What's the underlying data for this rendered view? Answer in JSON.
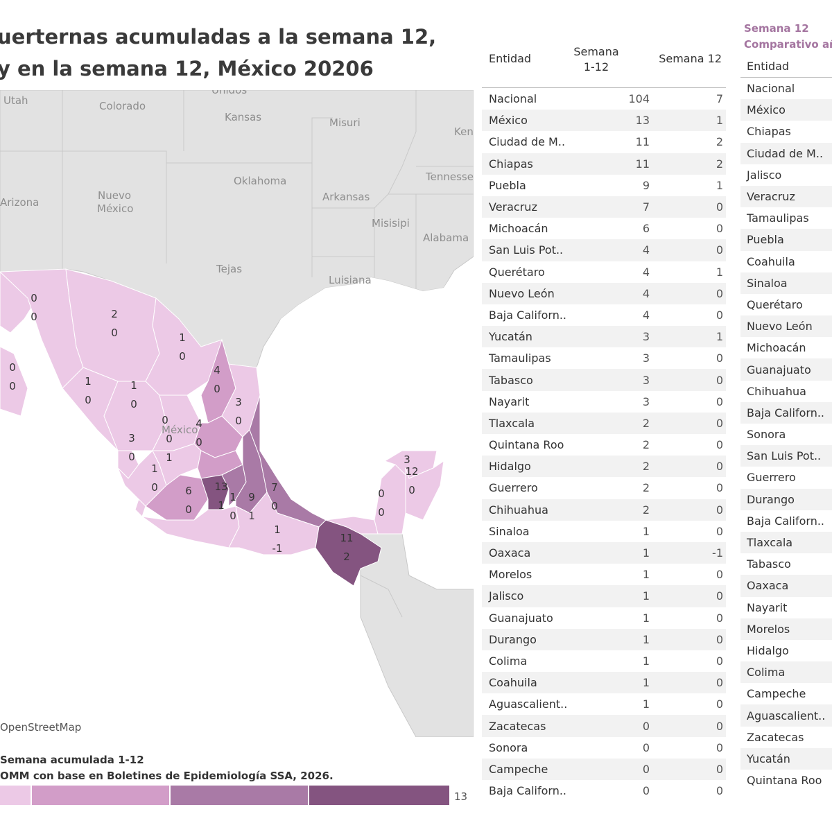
{
  "title": {
    "line1": "uerternas acumuladas a la semana 12,",
    "line2": "y en la semana 12, México 20206"
  },
  "map": {
    "attribution": "OpenStreetMap",
    "labels": [
      "Unidos",
      "Utah",
      "Colorado",
      "Kansas",
      "Misuri",
      "Ken",
      "Oklahoma",
      "Tennessee",
      "Arizona",
      "Nuevo",
      "México",
      "Arkansas",
      "Misisipi",
      "Alabama",
      "Tejas",
      "Luisiana",
      "México"
    ],
    "state_values": [
      {
        "a": "0",
        "b": "0"
      },
      {
        "a": "2",
        "b": "0"
      },
      {
        "a": "1",
        "b": "0"
      },
      {
        "a": "0",
        "b": "0"
      },
      {
        "a": "1",
        "b": "0"
      },
      {
        "a": "1",
        "b": "0"
      },
      {
        "a": "4",
        "b": "0"
      },
      {
        "a": "3",
        "b": "0"
      },
      {
        "a": "0",
        "b": ""
      },
      {
        "a": "4",
        "b": "0"
      },
      {
        "a": "3",
        "b": "0"
      },
      {
        "a": "0",
        "b": "1"
      },
      {
        "a": "1",
        "b": "0"
      },
      {
        "a": "6",
        "b": "0"
      },
      {
        "a": "13",
        "b": "1"
      },
      {
        "a": "1",
        "b": "0"
      },
      {
        "a": "9",
        "b": "1"
      },
      {
        "a": "7",
        "b": "0"
      },
      {
        "a": "1",
        "b": "-1"
      },
      {
        "a": "11",
        "b": "2"
      },
      {
        "a": "0",
        "b": "0"
      },
      {
        "a": "3",
        "b": ""
      },
      {
        "a": "12",
        "b": "0"
      }
    ],
    "colors": {
      "c1": "#ecc9e6",
      "c2": "#d29dc8",
      "c3": "#a97aa6",
      "c4": "#845480",
      "land": "#e2e2e2",
      "water": "#ffffff",
      "border": "#c9c9c9"
    }
  },
  "legend": {
    "title": "Semana acumulada 1-12",
    "source": "OMM con base en Boletines de Epidemiología SSA, 2026.",
    "max": "13",
    "prefix_title": "Se",
    "prefix_source": "O"
  },
  "table1": {
    "col_entidad": "Entidad",
    "col_sem_1_12": "Semana 1-12",
    "col_sem_12": "Semana 12",
    "rows": [
      {
        "name": "Nacional",
        "acc": "104",
        "week": "7"
      },
      {
        "name": "México",
        "acc": "13",
        "week": "1"
      },
      {
        "name": "Ciudad de M..",
        "acc": "11",
        "week": "2"
      },
      {
        "name": "Chiapas",
        "acc": "11",
        "week": "2"
      },
      {
        "name": "Puebla",
        "acc": "9",
        "week": "1"
      },
      {
        "name": "Veracruz",
        "acc": "7",
        "week": "0"
      },
      {
        "name": "Michoacán",
        "acc": "6",
        "week": "0"
      },
      {
        "name": "San Luis Pot..",
        "acc": "4",
        "week": "0"
      },
      {
        "name": "Querétaro",
        "acc": "4",
        "week": "1"
      },
      {
        "name": "Nuevo León",
        "acc": "4",
        "week": "0"
      },
      {
        "name": "Baja Californ..",
        "acc": "4",
        "week": "0"
      },
      {
        "name": "Yucatán",
        "acc": "3",
        "week": "1"
      },
      {
        "name": "Tamaulipas",
        "acc": "3",
        "week": "0"
      },
      {
        "name": "Tabasco",
        "acc": "3",
        "week": "0"
      },
      {
        "name": "Nayarit",
        "acc": "3",
        "week": "0"
      },
      {
        "name": "Tlaxcala",
        "acc": "2",
        "week": "0"
      },
      {
        "name": "Quintana Roo",
        "acc": "2",
        "week": "0"
      },
      {
        "name": "Hidalgo",
        "acc": "2",
        "week": "0"
      },
      {
        "name": "Guerrero",
        "acc": "2",
        "week": "0"
      },
      {
        "name": "Chihuahua",
        "acc": "2",
        "week": "0"
      },
      {
        "name": "Sinaloa",
        "acc": "1",
        "week": "0"
      },
      {
        "name": "Oaxaca",
        "acc": "1",
        "week": "-1"
      },
      {
        "name": "Morelos",
        "acc": "1",
        "week": "0"
      },
      {
        "name": "Jalisco",
        "acc": "1",
        "week": "0"
      },
      {
        "name": "Guanajuato",
        "acc": "1",
        "week": "0"
      },
      {
        "name": "Durango",
        "acc": "1",
        "week": "0"
      },
      {
        "name": "Colima",
        "acc": "1",
        "week": "0"
      },
      {
        "name": "Coahuila",
        "acc": "1",
        "week": "0"
      },
      {
        "name": "Aguascalient..",
        "acc": "1",
        "week": "0"
      },
      {
        "name": "Zacatecas",
        "acc": "0",
        "week": "0"
      },
      {
        "name": "Sonora",
        "acc": "0",
        "week": "0"
      },
      {
        "name": "Campeche",
        "acc": "0",
        "week": "0"
      },
      {
        "name": "Baja Californ..",
        "acc": "0",
        "week": "0"
      }
    ]
  },
  "table2": {
    "title_line1": "Semana 12",
    "title_line2": "Comparativo añ",
    "col_entidad": "Entidad",
    "rows": [
      "Nacional",
      "México",
      "Chiapas",
      "Ciudad de M..",
      "Jalisco",
      "Veracruz",
      "Tamaulipas",
      "Puebla",
      "Coahuila",
      "Sinaloa",
      "Querétaro",
      "Nuevo León",
      "Michoacán",
      "Guanajuato",
      "Chihuahua",
      "Baja Californ..",
      "Sonora",
      "San Luis Pot..",
      "Guerrero",
      "Durango",
      "Baja Californ..",
      "Tlaxcala",
      "Tabasco",
      "Oaxaca",
      "Nayarit",
      "Morelos",
      "Hidalgo",
      "Colima",
      "Campeche",
      "Aguascalient..",
      "Zacatecas",
      "Yucatán",
      "Quintana Roo"
    ]
  }
}
